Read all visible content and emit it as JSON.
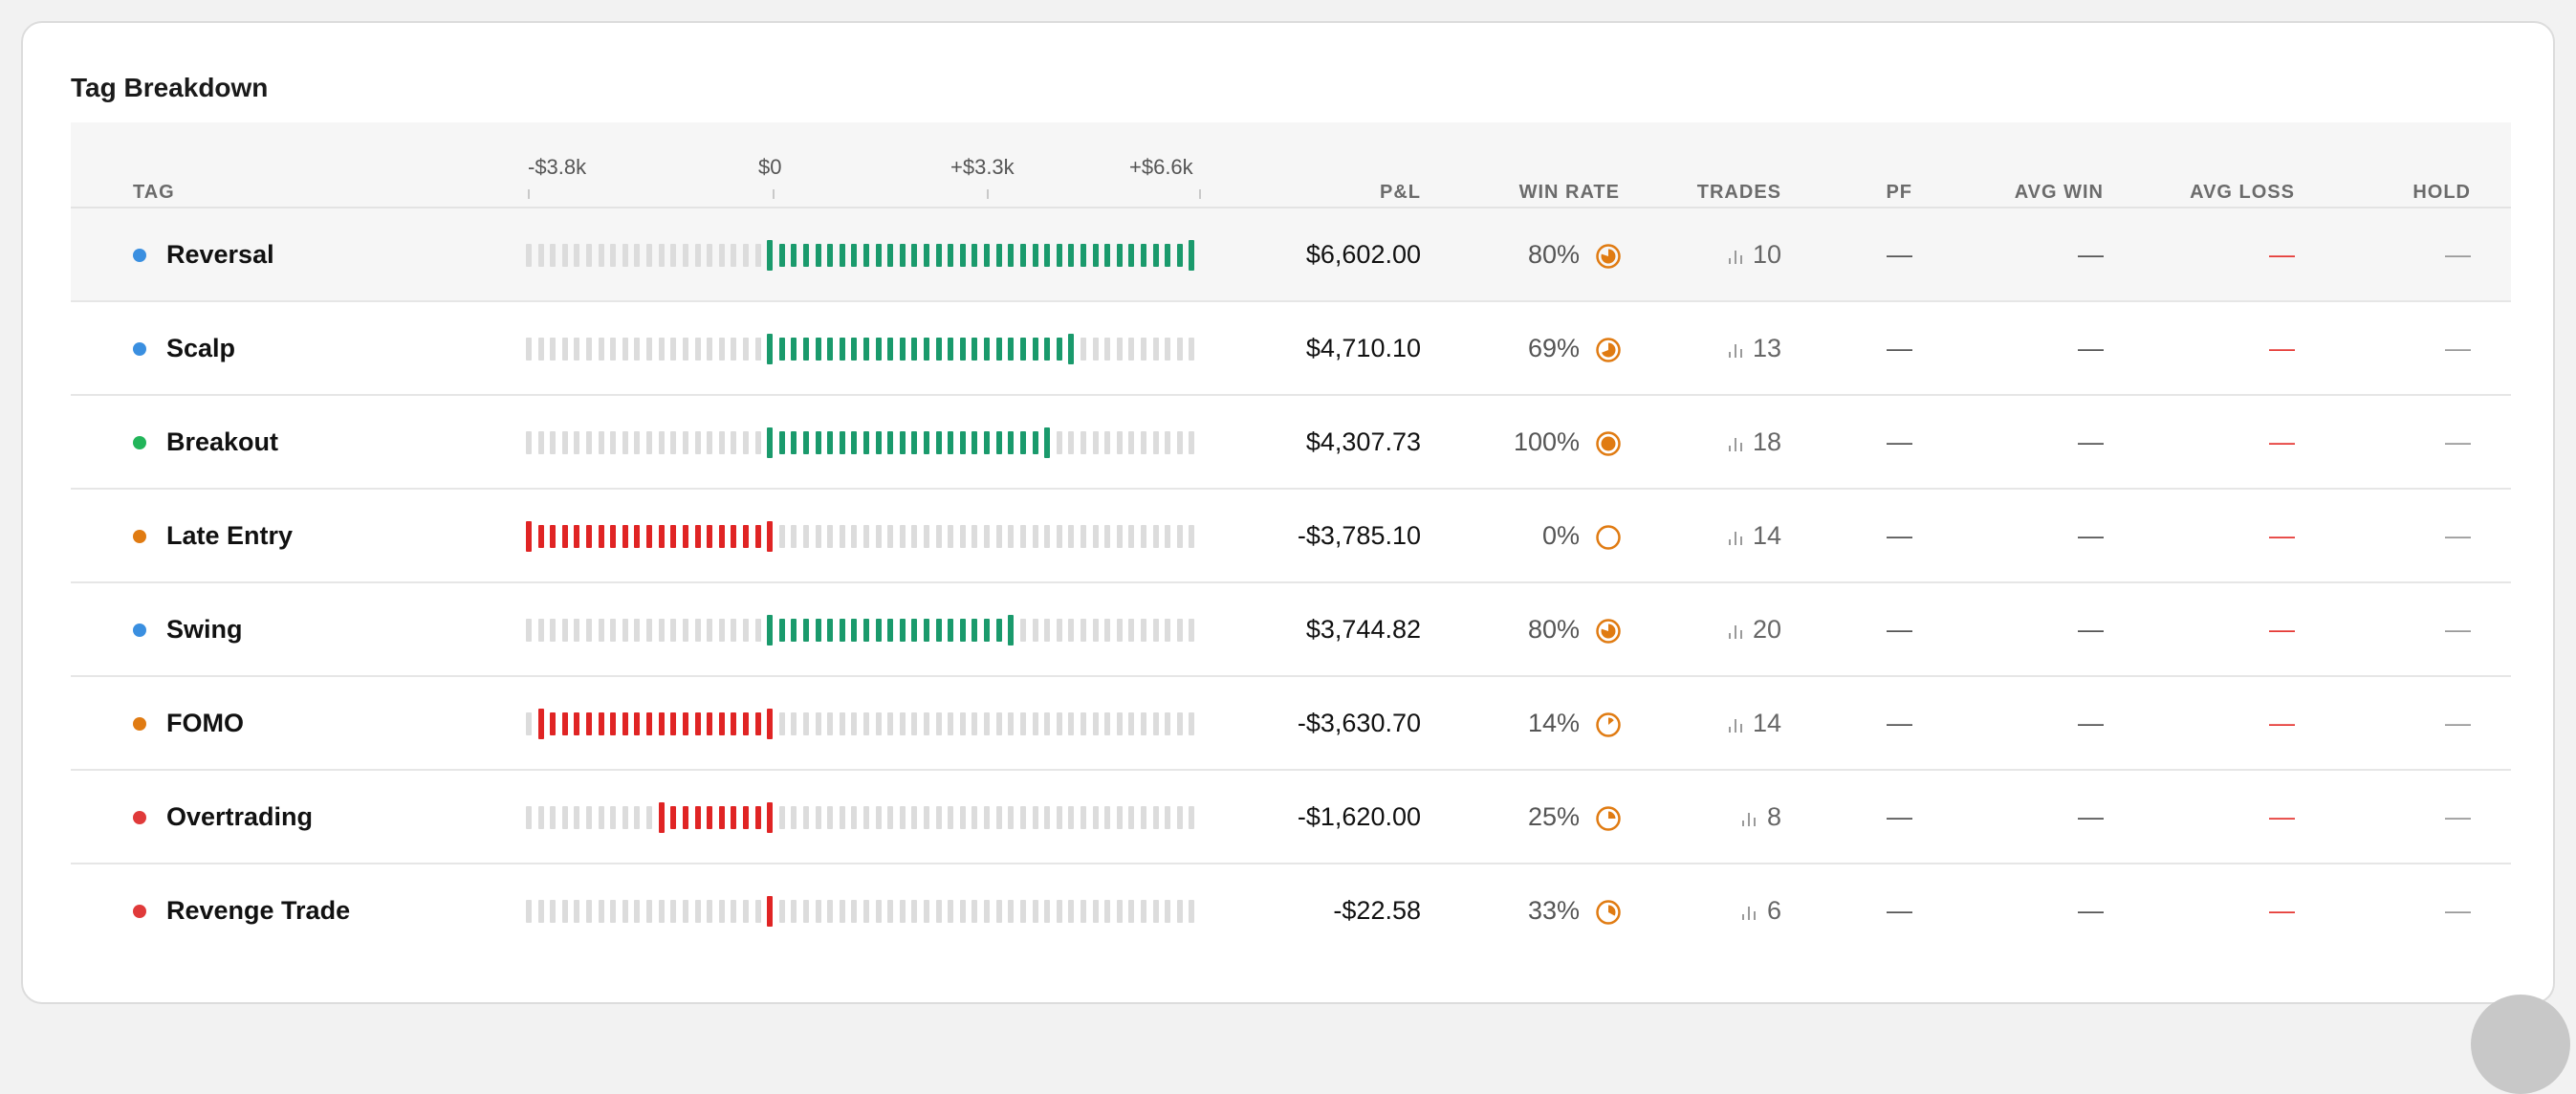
{
  "card": {
    "title": "Tag Breakdown"
  },
  "columns": {
    "tag": "TAG",
    "pnl": "P&L",
    "win_rate": "WIN RATE",
    "trades": "TRADES",
    "pf": "PF",
    "avg_win": "AVG WIN",
    "avg_loss": "AVG LOSS",
    "hold": "HOLD"
  },
  "scale": {
    "labels": [
      "-$3.8k",
      "$0",
      "+$3.3k",
      "+$6.6k"
    ],
    "min": -3785.1,
    "max": 6602.0,
    "segments": 56
  },
  "colors": {
    "positive": "#1a9a6c",
    "negative": "#e02424",
    "neutral_bar": "#dcdcdc",
    "win_rate_icon": "#e07b12",
    "dash_red": "#e53935"
  },
  "rows": [
    {
      "tag": "Reversal",
      "dot_color": "#3a8fe0",
      "pnl_value": 6602.0,
      "pnl": "$6,602.00",
      "win_rate_value": 0.8,
      "win_rate": "80%",
      "trades": "10",
      "pf": "—",
      "avg_win": "—",
      "avg_loss": "—",
      "hold": "—",
      "icon": "pie-chart-icon"
    },
    {
      "tag": "Scalp",
      "dot_color": "#3a8fe0",
      "pnl_value": 4710.1,
      "pnl": "$4,710.10",
      "win_rate_value": 0.69,
      "win_rate": "69%",
      "trades": "13",
      "pf": "—",
      "avg_win": "—",
      "avg_loss": "—",
      "hold": "—",
      "icon": "pie-chart-icon"
    },
    {
      "tag": "Breakout",
      "dot_color": "#22b55a",
      "pnl_value": 4307.73,
      "pnl": "$4,307.73",
      "win_rate_value": 1.0,
      "win_rate": "100%",
      "trades": "18",
      "pf": "—",
      "avg_win": "—",
      "avg_loss": "—",
      "hold": "—",
      "icon": "pie-chart-icon"
    },
    {
      "tag": "Late Entry",
      "dot_color": "#e07b12",
      "pnl_value": -3785.1,
      "pnl": "-$3,785.10",
      "win_rate_value": 0.0,
      "win_rate": "0%",
      "trades": "14",
      "pf": "—",
      "avg_win": "—",
      "avg_loss": "—",
      "hold": "—",
      "icon": "pie-chart-icon"
    },
    {
      "tag": "Swing",
      "dot_color": "#3a8fe0",
      "pnl_value": 3744.82,
      "pnl": "$3,744.82",
      "win_rate_value": 0.8,
      "win_rate": "80%",
      "trades": "20",
      "pf": "—",
      "avg_win": "—",
      "avg_loss": "—",
      "hold": "—",
      "icon": "pie-chart-icon"
    },
    {
      "tag": "FOMO",
      "dot_color": "#e07b12",
      "pnl_value": -3630.7,
      "pnl": "-$3,630.70",
      "win_rate_value": 0.14,
      "win_rate": "14%",
      "trades": "14",
      "pf": "—",
      "avg_win": "—",
      "avg_loss": "—",
      "hold": "—",
      "icon": "pie-chart-icon"
    },
    {
      "tag": "Overtrading",
      "dot_color": "#e03a3a",
      "pnl_value": -1620.0,
      "pnl": "-$1,620.00",
      "win_rate_value": 0.25,
      "win_rate": "25%",
      "trades": "8",
      "pf": "—",
      "avg_win": "—",
      "avg_loss": "—",
      "hold": "—",
      "icon": "pie-chart-icon"
    },
    {
      "tag": "Revenge Trade",
      "dot_color": "#e03a3a",
      "pnl_value": -22.58,
      "pnl": "-$22.58",
      "win_rate_value": 0.33,
      "win_rate": "33%",
      "trades": "6",
      "pf": "—",
      "avg_win": "—",
      "avg_loss": "—",
      "hold": "—",
      "icon": "pie-chart-icon"
    }
  ],
  "icons": {
    "trades": "bar-chart-icon",
    "win_rate": "pie-chart-icon"
  }
}
